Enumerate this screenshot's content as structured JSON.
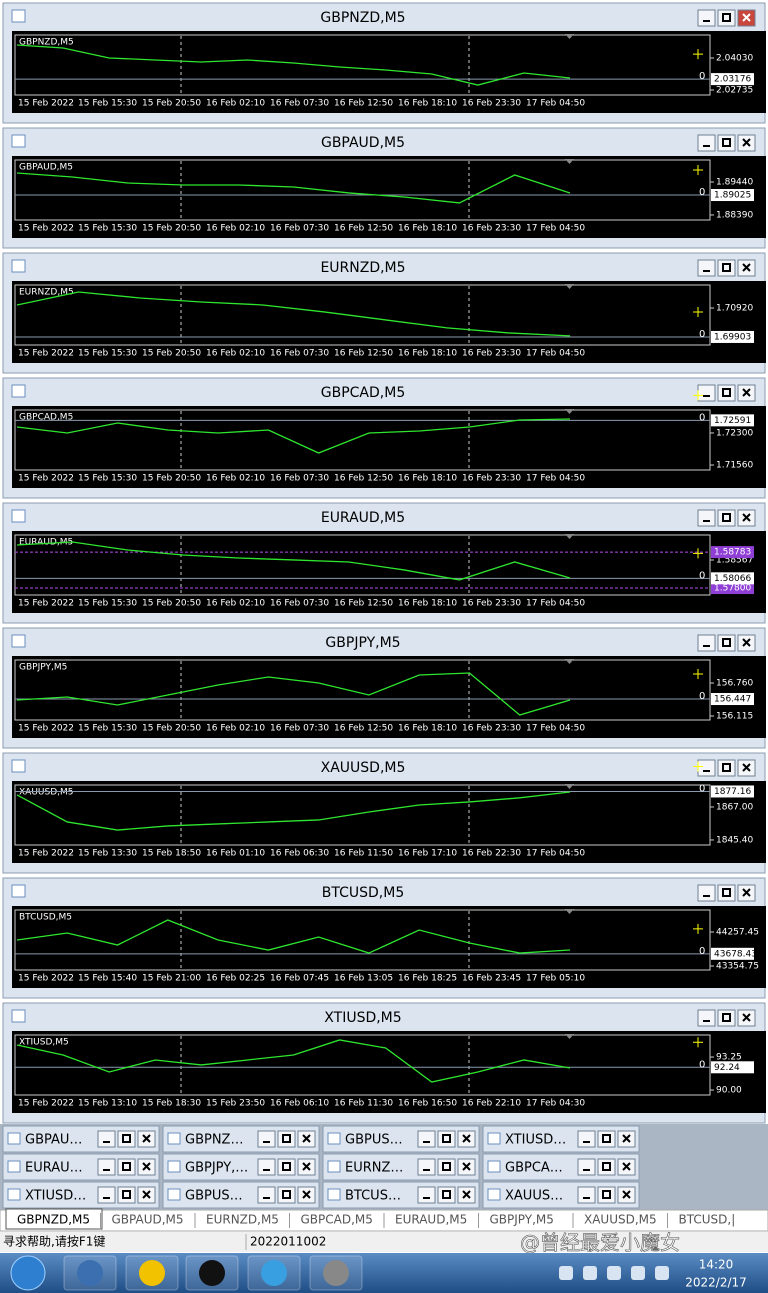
{
  "windows": [
    {
      "title": "GBPNZD,M5",
      "ylim": [
        2.02533,
        2.04961
      ],
      "ticks": [
        {
          "value": 2.0403,
          "label": "2.04030"
        },
        2.02735
      ],
      "current": 2.03176,
      "levels": [],
      "time_labels": [
        "15 Feb 2022",
        "15 Feb 15:30",
        "15 Feb 20:50",
        "16 Feb 02:10",
        "16 Feb 07:30",
        "16 Feb 12:50",
        "16 Feb 18:10",
        "16 Feb 23:30",
        "17 Feb 04:50"
      ],
      "trace": [
        2.04556,
        2.04434,
        2.0403,
        2.03949,
        2.03868,
        2.03949,
        2.03827,
        2.03665,
        2.03544,
        2.03382,
        2.02936,
        2.03422,
        2.0322
      ]
    },
    {
      "title": "GBPAUD,M5",
      "ylim": [
        1.8823,
        1.9014
      ],
      "ticks": [
        {
          "value": 1.8944,
          "label": "1.89440"
        },
        {
          "value": 1.8839,
          "label": "1.88390"
        }
      ],
      "current": 1.89025,
      "levels": [],
      "time_labels": [
        "15 Feb 2022",
        "15 Feb 15:30",
        "15 Feb 20:50",
        "16 Feb 02:10",
        "16 Feb 07:30",
        "16 Feb 12:50",
        "16 Feb 18:10",
        "16 Feb 23:30",
        "17 Feb 04:50"
      ],
      "trace": [
        1.89727,
        1.89599,
        1.89409,
        1.89345,
        1.89345,
        1.89281,
        1.89091,
        1.88963,
        1.88773,
        1.89663,
        1.89091
      ]
    },
    {
      "title": "EURNZD,M5",
      "ylim": [
        1.6962,
        1.7173
      ],
      "ticks": [
        {
          "value": 1.7092,
          "label": "1.70920"
        }
      ],
      "current": 1.69903,
      "levels": [],
      "time_labels": [
        "15 Feb 2022",
        "15 Feb 15:30",
        "15 Feb 20:50",
        "16 Feb 02:10",
        "16 Feb 07:30",
        "16 Feb 12:50",
        "16 Feb 18:10",
        "16 Feb 23:30",
        "17 Feb 04:50"
      ],
      "trace": [
        1.71028,
        1.71484,
        1.71274,
        1.71133,
        1.71028,
        1.70782,
        1.70502,
        1.70221,
        1.70045,
        1.6994
      ]
    },
    {
      "title": "GBPCAD,M5",
      "ylim": [
        1.71445,
        1.7283
      ],
      "ticks": [
        {
          "value": 1.723,
          "label": "1.72300"
        },
        {
          "value": 1.7156,
          "label": "1.71560"
        }
      ],
      "current": 1.72591,
      "levels": [],
      "time_labels": [
        "15 Feb 2022",
        "15 Feb 15:30",
        "15 Feb 20:50",
        "16 Feb 02:10",
        "16 Feb 07:30",
        "16 Feb 12:50",
        "16 Feb 18:10",
        "16 Feb 23:30",
        "17 Feb 04:50"
      ],
      "trace": [
        1.72437,
        1.72299,
        1.7253,
        1.72368,
        1.72299,
        1.72368,
        1.71837,
        1.72299,
        1.72345,
        1.72437,
        1.72599,
        1.72622
      ]
    },
    {
      "title": "EURAUD,M5",
      "ylim": [
        1.5761,
        1.5925
      ],
      "ticks": [
        1.58567
      ],
      "current": 1.58066,
      "levels": [
        1.58783,
        {
          "value": 1.578,
          "label": "1.57800"
        }
      ],
      "time_labels": [
        "15 Feb 2022",
        "15 Feb 15:30",
        "15 Feb 20:50",
        "16 Feb 02:10",
        "16 Feb 07:30",
        "16 Feb 12:50",
        "16 Feb 18:10",
        "16 Feb 23:30",
        "17 Feb 04:50"
      ],
      "trace": [
        1.58977,
        1.59059,
        1.58841,
        1.58704,
        1.58622,
        1.58568,
        1.58513,
        1.58295,
        1.58022,
        1.58513,
        1.58076
      ]
    },
    {
      "title": "GBPJPY,M5",
      "ylim": [
        156.037,
        157.21
      ],
      "ticks": [
        {
          "value": 156.76,
          "label": "156.760"
        },
        156.115
      ],
      "current": 156.447,
      "levels": [],
      "time_labels": [
        "15 Feb 2022",
        "15 Feb 15:30",
        "15 Feb 20:50",
        "16 Feb 02:10",
        "16 Feb 07:30",
        "16 Feb 12:50",
        "16 Feb 18:10",
        "16 Feb 23:30",
        "17 Feb 04:50"
      ],
      "trace": [
        156.428,
        156.487,
        156.33,
        156.526,
        156.721,
        156.878,
        156.76,
        156.526,
        156.917,
        156.956,
        156.135,
        156.428
      ]
    },
    {
      "title": "XAUUSD,M5",
      "ylim": [
        1842.1,
        1881.4
      ],
      "ticks": [
        {
          "value": 1867,
          "label": "1867.00"
        },
        {
          "value": 1845.4,
          "label": "1845.40"
        }
      ],
      "current": 1877.16,
      "levels": [],
      "time_labels": [
        "15 Feb 2022",
        "15 Feb 13:30",
        "15 Feb 18:50",
        "16 Feb 01:10",
        "16 Feb 06:30",
        "16 Feb 11:50",
        "16 Feb 17:10",
        "16 Feb 22:30",
        "17 Feb 04:50"
      ],
      "trace": [
        1874.9,
        1857.2,
        1851.9,
        1854.6,
        1855.9,
        1857.2,
        1858.5,
        1863.7,
        1868.3,
        1870.3,
        1873,
        1876.8
      ]
    },
    {
      "title": "BTCUSD,M5",
      "ylim": [
        43249,
        44841
      ],
      "ticks": [
        44257.45,
        43354.75
      ],
      "current": 43678.43,
      "levels": [],
      "time_labels": [
        "15 Feb 2022",
        "15 Feb 15:40",
        "15 Feb 21:00",
        "16 Feb 02:25",
        "16 Feb 07:45",
        "16 Feb 13:05",
        "16 Feb 18:25",
        "16 Feb 23:45",
        "17 Feb 05:10"
      ],
      "trace": [
        44044,
        44230,
        43912,
        44576,
        44044,
        43779,
        44124,
        43699,
        44310,
        43965,
        43699,
        43779
      ]
    },
    {
      "title": "XTIUSD,M5",
      "ylim": [
        89.51,
        95.42
      ],
      "ticks": [
        93.25,
        {
          "value": 90,
          "label": "90.00"
        }
      ],
      "current": 92.24,
      "levels": [],
      "time_labels": [
        "15 Feb 2022",
        "15 Feb 13:10",
        "15 Feb 18:30",
        "15 Feb 23:50",
        "16 Feb 06:10",
        "16 Feb 11:30",
        "16 Feb 16:50",
        "16 Feb 22:10",
        "17 Feb 04:30"
      ],
      "trace": [
        94.44,
        93.45,
        91.78,
        92.96,
        92.47,
        92.96,
        93.45,
        94.93,
        94.14,
        90.79,
        91.78,
        92.96,
        92.17
      ]
    }
  ],
  "zero_label": "0",
  "minimized": [
    "GBPAU…",
    "GBPNZ…",
    "GBPUS…",
    "XTIUSD…",
    "EURAU…",
    "GBPJPY,…",
    "EURNZ…",
    "GBPCA…",
    "XTIUSD…",
    "GBPUS…",
    "BTCUS…",
    "XAUUS…"
  ],
  "tabs": [
    "GBPNZD,M5",
    "GBPAUD,M5",
    "EURNZD,M5",
    "GBPCAD,M5",
    "EURAUD,M5",
    "GBPJPY,M5",
    "XAUUSD,M5",
    "BTCUSD,|"
  ],
  "status": {
    "help": "寻求帮助,请按F1键",
    "build": "2022011002"
  },
  "watermark": "@曾经最爱小魔女",
  "taskbar": {
    "time": "14:20",
    "date": "2022/2/17"
  }
}
